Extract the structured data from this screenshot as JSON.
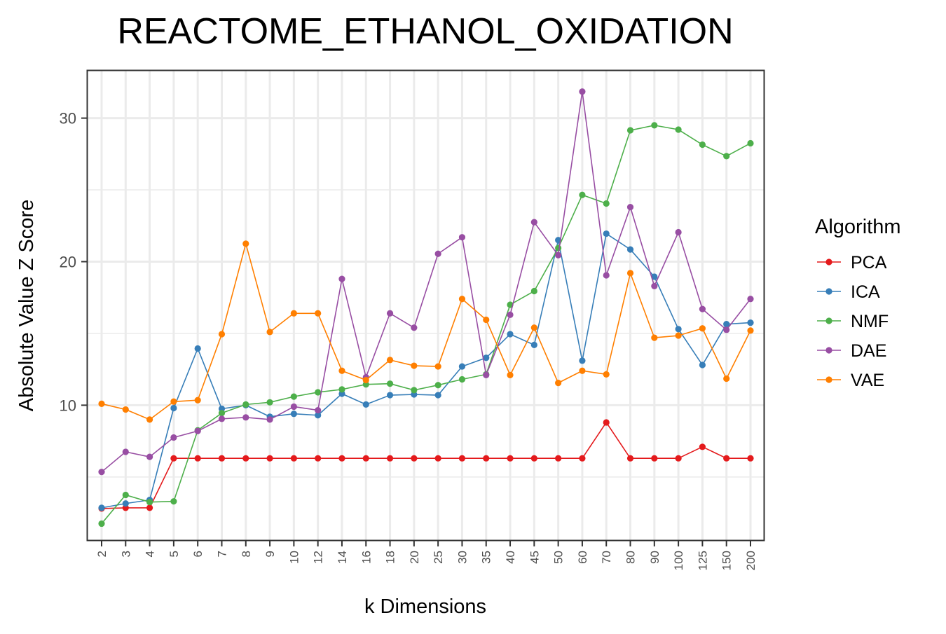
{
  "chart_data": {
    "type": "line",
    "title": "REACTOME_ETHANOL_OXIDATION",
    "xlabel": "k Dimensions",
    "ylabel": "Absolute Value Z Score",
    "x_axis_type": "categorical",
    "categories": [
      "2",
      "3",
      "4",
      "5",
      "6",
      "7",
      "8",
      "9",
      "10",
      "12",
      "14",
      "16",
      "18",
      "20",
      "25",
      "30",
      "35",
      "40",
      "45",
      "50",
      "60",
      "70",
      "80",
      "90",
      "100",
      "125",
      "150",
      "200"
    ],
    "ylim": [
      0.6,
      33.3
    ],
    "yticks": [
      10,
      20,
      30
    ],
    "grid": true,
    "legend": {
      "title": "Algorithm",
      "position": "right"
    },
    "series": [
      {
        "name": "PCA",
        "color": "#E41A1C",
        "values": [
          2.8,
          2.85,
          2.85,
          6.3,
          6.3,
          6.3,
          6.3,
          6.3,
          6.3,
          6.3,
          6.3,
          6.3,
          6.3,
          6.3,
          6.3,
          6.3,
          6.3,
          6.3,
          6.3,
          6.3,
          6.3,
          8.8,
          6.3,
          6.3,
          6.3,
          7.1,
          6.3,
          6.3
        ]
      },
      {
        "name": "ICA",
        "color": "#377EB8",
        "values": [
          2.85,
          3.15,
          3.4,
          9.8,
          13.95,
          9.75,
          10.0,
          9.2,
          9.4,
          9.3,
          10.8,
          10.05,
          10.7,
          10.75,
          10.7,
          12.7,
          13.3,
          14.95,
          14.2,
          21.5,
          13.1,
          21.95,
          20.85,
          18.95,
          15.3,
          12.8,
          15.65,
          15.75
        ]
      },
      {
        "name": "NMF",
        "color": "#4DAF4A",
        "values": [
          1.75,
          3.75,
          3.25,
          3.3,
          8.25,
          9.45,
          10.05,
          10.2,
          10.6,
          10.9,
          11.1,
          11.45,
          11.5,
          11.05,
          11.4,
          11.8,
          12.15,
          17.0,
          17.95,
          20.95,
          24.65,
          24.05,
          29.15,
          29.5,
          29.2,
          28.15,
          27.35,
          28.25
        ]
      },
      {
        "name": "DAE",
        "color": "#984EA3",
        "values": [
          5.35,
          6.75,
          6.4,
          7.75,
          8.2,
          9.05,
          9.15,
          9.0,
          9.9,
          9.65,
          18.8,
          11.95,
          16.4,
          15.4,
          20.55,
          21.7,
          12.1,
          16.3,
          22.75,
          20.45,
          31.85,
          19.05,
          23.8,
          18.3,
          22.05,
          16.7,
          15.25,
          17.4
        ]
      },
      {
        "name": "VAE",
        "color": "#FF7F00",
        "values": [
          10.1,
          9.7,
          9.0,
          10.25,
          10.35,
          14.95,
          21.25,
          15.1,
          16.4,
          16.4,
          12.4,
          11.75,
          13.15,
          12.75,
          12.7,
          17.4,
          15.95,
          12.1,
          15.4,
          11.55,
          12.4,
          12.15,
          19.2,
          14.7,
          14.85,
          15.35,
          11.85,
          15.2
        ]
      }
    ]
  }
}
